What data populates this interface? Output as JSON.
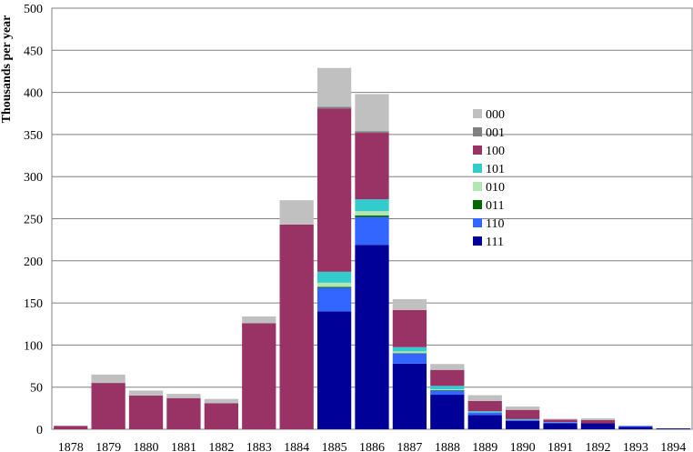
{
  "chart_data": {
    "type": "bar",
    "stacked": true,
    "title": "",
    "xlabel": "",
    "ylabel": "Thousands per year",
    "ylim": [
      0,
      500
    ],
    "yticks": [
      0,
      50,
      100,
      150,
      200,
      250,
      300,
      350,
      400,
      450,
      500
    ],
    "grid": "horizontal",
    "legend_position": "right-center",
    "categories": [
      "1878",
      "1879",
      "1880",
      "1881",
      "1882",
      "1883",
      "1884",
      "1885",
      "1886",
      "1887",
      "1888",
      "1889",
      "1890",
      "1891",
      "1892",
      "1893",
      "1894"
    ],
    "series": [
      {
        "name": "111",
        "color": "#000099",
        "values": [
          0,
          0,
          0,
          0,
          0,
          0,
          0,
          140,
          219,
          78,
          41,
          17,
          10,
          7,
          7,
          3,
          1
        ]
      },
      {
        "name": "110",
        "color": "#3366ff",
        "values": [
          0,
          0,
          0,
          0,
          0,
          0,
          0,
          28,
          33,
          12,
          5,
          3,
          1,
          1,
          0,
          1,
          0
        ]
      },
      {
        "name": "011",
        "color": "#006600",
        "values": [
          0,
          0,
          0,
          0,
          0,
          0,
          0,
          1,
          2,
          0.5,
          0.5,
          0,
          0,
          0,
          0,
          0,
          0
        ]
      },
      {
        "name": "010",
        "color": "#b3e6b3",
        "values": [
          0,
          0,
          0,
          0,
          0,
          0,
          0,
          5,
          5,
          2,
          1,
          0.5,
          0,
          0,
          0,
          0,
          0
        ]
      },
      {
        "name": "101",
        "color": "#33cccc",
        "values": [
          0,
          0,
          0,
          0,
          0,
          0,
          0,
          13,
          14,
          5,
          4,
          1,
          1,
          0.5,
          0,
          0,
          0
        ]
      },
      {
        "name": "100",
        "color": "#993366",
        "values": [
          4,
          55,
          40,
          37,
          31,
          126,
          243,
          194,
          79,
          44,
          19,
          12,
          11,
          3,
          4,
          0,
          0
        ]
      },
      {
        "name": "001",
        "color": "#808080",
        "values": [
          0,
          0,
          0,
          0,
          0,
          0,
          0,
          2,
          2,
          0,
          0,
          0,
          0,
          0,
          0,
          0,
          0
        ]
      },
      {
        "name": "000",
        "color": "#c0c0c0",
        "values": [
          0,
          10,
          6,
          5,
          5,
          8,
          29,
          46,
          44,
          13,
          7,
          7,
          4,
          1,
          2,
          0,
          0
        ]
      }
    ],
    "legend_order": [
      "000",
      "001",
      "100",
      "101",
      "010",
      "011",
      "110",
      "111"
    ]
  }
}
